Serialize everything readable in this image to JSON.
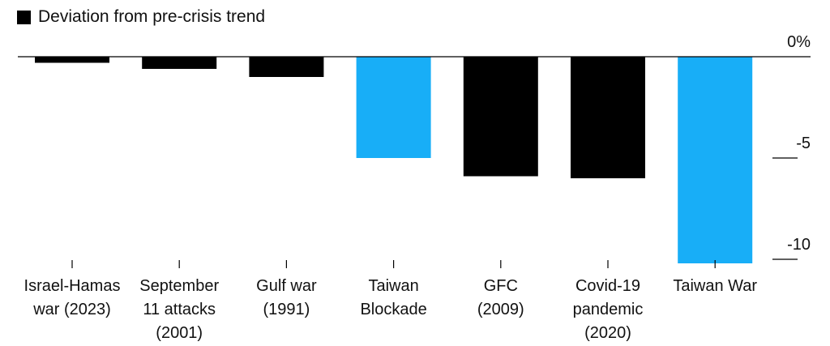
{
  "legend": {
    "label": "Deviation from pre-crisis trend",
    "color": "#000000"
  },
  "chart_data": {
    "type": "bar",
    "title": "",
    "xlabel": "",
    "ylabel": "",
    "categories": [
      [
        "Israel-Hamas",
        "war (2023)"
      ],
      [
        "September",
        "11 attacks",
        "(2001)"
      ],
      [
        "Gulf war",
        "(1991)"
      ],
      [
        "Taiwan",
        "Blockade"
      ],
      [
        "GFC",
        "(2009)"
      ],
      [
        "Covid-19",
        "pandemic",
        "(2020)"
      ],
      [
        "Taiwan War"
      ]
    ],
    "series": [
      {
        "name": "Deviation from pre-crisis trend",
        "values": [
          -0.3,
          -0.6,
          -1.0,
          -5.0,
          -5.9,
          -6.0,
          -10.2
        ]
      }
    ],
    "highlight": [
      false,
      false,
      false,
      true,
      false,
      false,
      true
    ],
    "colors": {
      "default": "#000000",
      "highlight": "#18AEF7"
    },
    "ylim": [
      -10.2,
      0
    ],
    "yticks": [
      {
        "value": 0,
        "label": "0%"
      },
      {
        "value": -5,
        "label": "-5"
      },
      {
        "value": -10,
        "label": "-10"
      }
    ],
    "grid": false,
    "legend_position": "top-left"
  }
}
